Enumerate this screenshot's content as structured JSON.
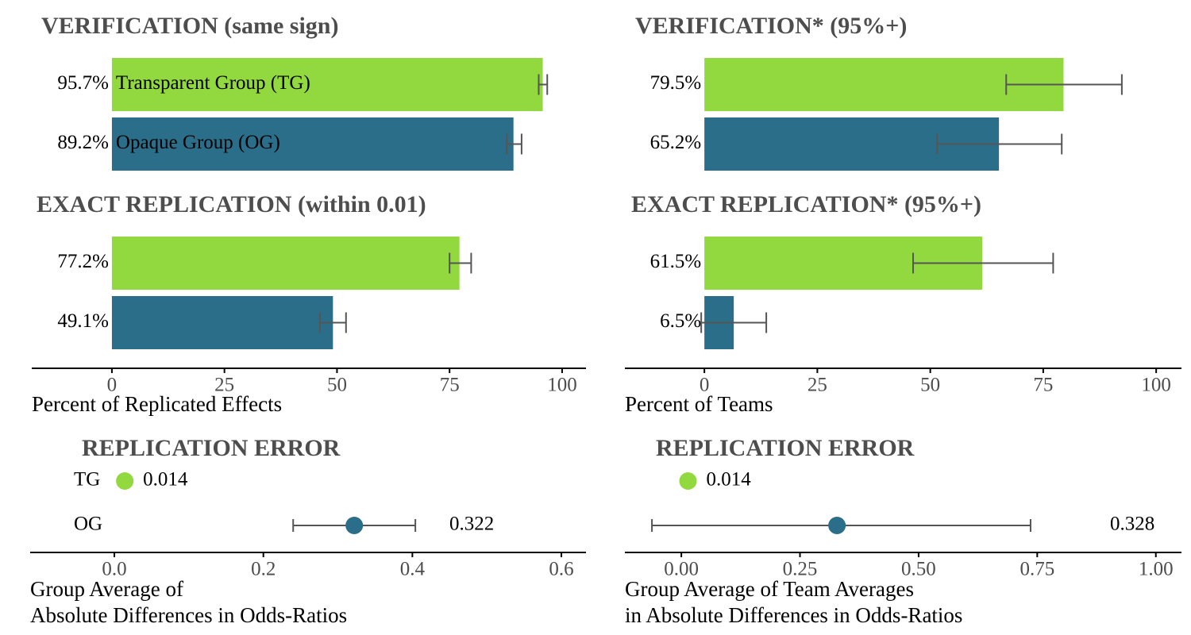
{
  "chart_data": [
    {
      "type": "bar",
      "orientation": "horizontal",
      "colors": [
        "#92d83f",
        "#2b6e8a"
      ],
      "xlabel": "Percent of Replicated Effects",
      "xlim": [
        -17.8,
        105.3
      ],
      "xticks": [
        0,
        25,
        50,
        75,
        100
      ],
      "panels": [
        {
          "title": "VERIFICATION (same sign)",
          "categories": [
            "Transparent Group (TG)",
            "Opaque Group (OG)"
          ],
          "values": [
            95.7,
            89.2
          ],
          "value_labels": [
            "95.7%",
            "89.2%"
          ],
          "error_low": [
            94.8,
            87.7
          ],
          "error_high": [
            96.7,
            91.0
          ]
        },
        {
          "title": "EXACT REPLICATION (within 0.01)",
          "categories": [
            null,
            null
          ],
          "values": [
            77.2,
            49.1
          ],
          "value_labels": [
            "77.2%",
            "49.1%"
          ],
          "error_low": [
            75.0,
            46.2
          ],
          "error_high": [
            79.8,
            52.0
          ]
        }
      ]
    },
    {
      "type": "bar",
      "orientation": "horizontal",
      "colors": [
        "#92d83f",
        "#2b6e8a"
      ],
      "xlabel": "Percent of Teams",
      "xlim": [
        -17.6,
        105.6
      ],
      "xticks": [
        0,
        25,
        50,
        75,
        100
      ],
      "panels": [
        {
          "title": "VERIFICATION* (95%+)",
          "categories": [
            null,
            null
          ],
          "values": [
            79.5,
            65.2
          ],
          "value_labels": [
            "79.5%",
            "65.2%"
          ],
          "error_low": [
            66.8,
            51.5
          ],
          "error_high": [
            92.4,
            79.1
          ]
        },
        {
          "title": "EXACT REPLICATION* (95%+)",
          "categories": [
            null,
            null
          ],
          "values": [
            61.5,
            6.5
          ],
          "value_labels": [
            "61.5%",
            "6.5%"
          ],
          "error_low": [
            46.2,
            -0.7
          ],
          "error_high": [
            77.2,
            13.7
          ]
        }
      ]
    },
    {
      "type": "dot",
      "title": "REPLICATION ERROR",
      "colors": [
        "#92d83f",
        "#2b6e8a"
      ],
      "categories": [
        "TG",
        "OG"
      ],
      "values": [
        0.014,
        0.322
      ],
      "value_labels": [
        "0.014",
        "0.322"
      ],
      "error_low": [
        null,
        0.24
      ],
      "error_high": [
        null,
        0.404
      ],
      "xlim": [
        -0.113,
        0.633
      ],
      "xticks": [
        {
          "value": 0,
          "label": "0.0"
        },
        0.2,
        0.4,
        0.6
      ],
      "xlabel": [
        "Group Average of",
        "Absolute Differences in Odds-Ratios"
      ]
    },
    {
      "type": "dot",
      "title": "REPLICATION ERROR",
      "colors": [
        "#92d83f",
        "#2b6e8a"
      ],
      "categories": [
        null,
        null
      ],
      "values": [
        0.014,
        0.328
      ],
      "value_labels": [
        "0.014",
        "0.328"
      ],
      "error_low": [
        null,
        -0.062
      ],
      "error_high": [
        null,
        0.736
      ],
      "xlim": [
        -0.119,
        1.054
      ],
      "xticks": [
        {
          "value": 0,
          "label": "0.00"
        },
        {
          "value": 0.25,
          "label": "0.25"
        },
        {
          "value": 0.5,
          "label": "0.50"
        },
        {
          "value": 0.75,
          "label": "0.75"
        },
        {
          "value": 1,
          "label": "1.00"
        }
      ],
      "xlabel": [
        "Group Average of Team Averages",
        "in Absolute Differences in Odds-Ratios"
      ]
    }
  ]
}
